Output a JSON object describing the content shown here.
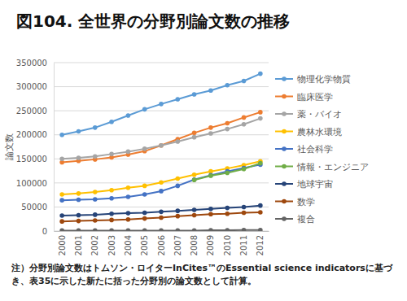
{
  "chart_data": {
    "type": "line",
    "title": "図104. 全世界の分野別論文数の推移",
    "y_label": "論文数",
    "note": "注）分野別論文数はトムソン・ロイターInCites™のEssential science indicatorsに基づき、表35に示した新たに括った分野別の論文数として計算。",
    "categories": [
      "2000",
      "2001",
      "2002",
      "2003",
      "2004",
      "2005",
      "2006",
      "2007",
      "2008",
      "2009",
      "2010",
      "2011",
      "2012"
    ],
    "ylim": [
      0,
      350000
    ],
    "yticks": [
      0,
      50000,
      100000,
      150000,
      200000,
      250000,
      300000,
      350000
    ],
    "grid": true,
    "legend": "right",
    "marker": "circle",
    "series": [
      {
        "name": "物理化学物質",
        "color": "#5b9bd5",
        "values": [
          200000,
          207000,
          215000,
          227000,
          240000,
          253000,
          264000,
          274000,
          284000,
          292000,
          303000,
          312000,
          327000
        ]
      },
      {
        "name": "臨床医学",
        "color": "#ed7d31",
        "values": [
          143000,
          146000,
          149000,
          153000,
          159000,
          166000,
          178000,
          191000,
          204000,
          215000,
          224000,
          236000,
          247000
        ]
      },
      {
        "name": "薬・バイオ",
        "color": "#a5a5a5",
        "values": [
          150000,
          152000,
          155000,
          160000,
          165000,
          171000,
          178000,
          186000,
          195000,
          203000,
          212000,
          222000,
          234000
        ]
      },
      {
        "name": "農林水環境",
        "color": "#ffc000",
        "values": [
          76000,
          78000,
          81000,
          85000,
          90000,
          94000,
          101000,
          109000,
          117000,
          124000,
          130000,
          137000,
          145000
        ]
      },
      {
        "name": "社会科学",
        "color": "#4472c4",
        "values": [
          64000,
          65000,
          66000,
          68000,
          71000,
          76000,
          83000,
          94000,
          107000,
          116000,
          124000,
          131000,
          138000
        ]
      },
      {
        "name": "情報・エンジニア",
        "color": "#70ad47",
        "values": [
          null,
          null,
          null,
          null,
          null,
          null,
          null,
          null,
          106000,
          115000,
          121000,
          129000,
          141000
        ]
      },
      {
        "name": "地球宇宙",
        "color": "#264478",
        "values": [
          32000,
          33000,
          34000,
          36000,
          37000,
          38000,
          40000,
          42000,
          44000,
          46000,
          48000,
          50000,
          53000
        ]
      },
      {
        "name": "数学",
        "color": "#9e480e",
        "values": [
          20000,
          21000,
          22000,
          23000,
          24000,
          26000,
          28000,
          31000,
          33000,
          35000,
          36000,
          38000,
          39000
        ]
      },
      {
        "name": "複合",
        "color": "#636363",
        "values": [
          1000,
          1000,
          1000,
          1000,
          1000,
          1000,
          1000,
          1000,
          1000,
          1500,
          1500,
          2000,
          2000
        ]
      }
    ]
  }
}
